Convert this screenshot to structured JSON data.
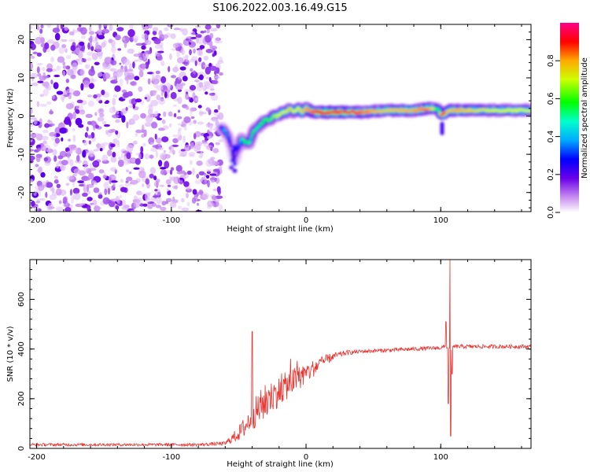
{
  "title": "S106.2022.003.16.49.G15",
  "chart_data": [
    {
      "type": "heatmap",
      "xlabel": "Height of straight line (km)",
      "ylabel": "Frequency (Hz)",
      "xlim": [
        -205,
        167
      ],
      "ylim": [
        -25,
        24
      ],
      "x_ticks": [
        -200,
        -100,
        0,
        100
      ],
      "x_tick_labels": [
        "-200",
        "-100",
        "0",
        "100"
      ],
      "y_ticks": [
        -20,
        -10,
        0,
        10,
        20
      ],
      "y_tick_labels": [
        "-20",
        "-10",
        "0",
        "10",
        "20"
      ],
      "colorbar": {
        "label": "Normalized spectral amplitude",
        "range": [
          0,
          1
        ],
        "ticks": [
          0.0,
          0.2,
          0.4,
          0.6,
          0.8
        ],
        "tick_labels": [
          "0.0",
          "0.2",
          "0.4",
          "0.6",
          "0.8"
        ]
      },
      "noise_region_x": [
        -205,
        -63
      ],
      "ridge": {
        "x": [
          -63,
          -60,
          -57,
          -55,
          -53,
          -51,
          -48,
          -45,
          -42,
          -39,
          -36,
          -33,
          -30,
          -27,
          -24,
          -21,
          -18,
          -15,
          -12,
          -9,
          -6,
          -3,
          0,
          5,
          10,
          20,
          40,
          60,
          80,
          90,
          95,
          98,
          100,
          102,
          104,
          106,
          110,
          120,
          140,
          167
        ],
        "freq": [
          -3,
          -4,
          -6,
          -9,
          -12,
          -9,
          -6,
          -7,
          -7,
          -4,
          -3,
          -2,
          -1,
          -1,
          0,
          0,
          1,
          1,
          2,
          1,
          2,
          1,
          2,
          1,
          1,
          1,
          1,
          1.5,
          1.5,
          2,
          2,
          2,
          0.5,
          0.5,
          1,
          1.5,
          1.5,
          1.5,
          1.5,
          1.5
        ],
        "amplitude": [
          0.3,
          0.4,
          0.3,
          0.2,
          0.15,
          0.25,
          0.45,
          0.6,
          0.5,
          0.55,
          0.5,
          0.55,
          0.6,
          0.6,
          0.65,
          0.7,
          0.7,
          0.7,
          0.75,
          0.7,
          0.7,
          0.75,
          0.8,
          0.85,
          0.9,
          0.95,
          0.85,
          0.75,
          0.8,
          0.85,
          0.7,
          0.5,
          0.85,
          0.9,
          0.8,
          0.75,
          0.8,
          0.75,
          0.7,
          0.7
        ]
      }
    },
    {
      "type": "line",
      "xlabel": "Height of straight line (km)",
      "ylabel": "SNR (10 * v/v)",
      "xlim": [
        -205,
        167
      ],
      "ylim": [
        0,
        760
      ],
      "x_ticks": [
        -200,
        -100,
        0,
        100
      ],
      "x_tick_labels": [
        "-200",
        "-100",
        "0",
        "100"
      ],
      "y_ticks": [
        0,
        200,
        400,
        600
      ],
      "y_tick_labels": [
        "0",
        "200",
        "400",
        "600"
      ],
      "color": "#e8332f",
      "envelope": {
        "x": [
          -205,
          -80,
          -60,
          -50,
          -45,
          -40,
          -35,
          -30,
          -20,
          -10,
          0,
          10,
          20,
          30,
          40,
          60,
          80,
          100,
          104,
          106,
          108,
          110,
          130,
          167
        ],
        "y": [
          15,
          15,
          20,
          60,
          90,
          130,
          160,
          190,
          230,
          270,
          300,
          340,
          370,
          385,
          390,
          395,
          400,
          405,
          410,
          400,
          405,
          410,
          410,
          410
        ],
        "noise": [
          6,
          6,
          8,
          30,
          45,
          55,
          70,
          70,
          60,
          55,
          40,
          30,
          15,
          10,
          8,
          8,
          8,
          8,
          10,
          10,
          10,
          8,
          8,
          8
        ]
      },
      "spikes": [
        {
          "x": -40,
          "y": 470
        },
        {
          "x": 107,
          "y": 760
        },
        {
          "x": 107.5,
          "y": 50
        }
      ]
    }
  ]
}
